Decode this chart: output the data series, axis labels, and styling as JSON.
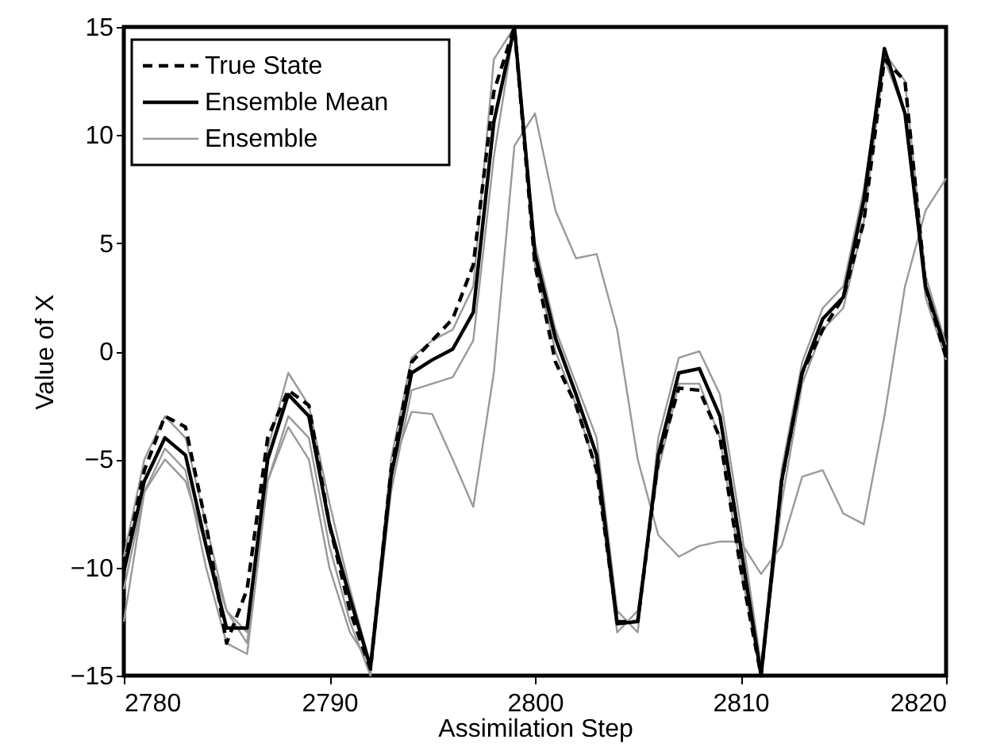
{
  "chart_data": {
    "type": "line",
    "xlabel": "Assimilation Step",
    "ylabel": "Value of X",
    "x": [
      2780,
      2781,
      2782,
      2783,
      2784,
      2785,
      2786,
      2787,
      2788,
      2789,
      2790,
      2791,
      2792,
      2793,
      2794,
      2795,
      2796,
      2797,
      2798,
      2799,
      2800,
      2801,
      2802,
      2803,
      2804,
      2805,
      2806,
      2807,
      2808,
      2809,
      2810,
      2811,
      2812,
      2813,
      2814,
      2815,
      2816,
      2817,
      2818,
      2819,
      2820
    ],
    "xlim": [
      2780,
      2820
    ],
    "xticks": [
      2780,
      2790,
      2800,
      2810,
      2820
    ],
    "ylim": [
      -15,
      15
    ],
    "yticks": [
      -15,
      -10,
      -5,
      0,
      5,
      10,
      15
    ],
    "grid": false,
    "legend": "top left",
    "marker": "none",
    "series": [
      {
        "name": "True State",
        "color": "#000000",
        "line_style": "dashed",
        "values": [
          -10,
          -5.5,
          -3,
          -3.5,
          -8,
          -13.5,
          -11,
          -4,
          -1.8,
          -2.5,
          -8,
          -12,
          -14.7,
          -5.5,
          -0.5,
          0.5,
          1.5,
          4,
          12,
          15,
          4,
          -0.5,
          -2.5,
          -5.5,
          -12.5,
          -12.5,
          -5,
          -1.7,
          -1.8,
          -4,
          -10,
          -15,
          -6,
          -1,
          1,
          2.5,
          6,
          13.5,
          12.5,
          3,
          -0.3
        ]
      },
      {
        "name": "Ensemble Mean",
        "color": "#000000",
        "line_style": "solid",
        "values": [
          -10.2,
          -6,
          -4,
          -4.8,
          -9,
          -12.8,
          -12.8,
          -5,
          -2,
          -3,
          -8,
          -11.4,
          -14.6,
          -5.8,
          -1,
          -0.4,
          0.1,
          1.8,
          10.6,
          15,
          4.5,
          0.6,
          -2,
          -4.8,
          -12.6,
          -12.5,
          -4.8,
          -1,
          -0.8,
          -3,
          -9,
          -15,
          -6,
          -1,
          1.5,
          2.5,
          7,
          14,
          11,
          3,
          0
        ]
      },
      {
        "name": "Ensemble",
        "color": "#999999",
        "line_style": "solid",
        "values": [
          -12.5,
          -6.5,
          -5,
          -6,
          -9,
          -12,
          -13,
          -6,
          -3.5,
          -5,
          -10,
          -13,
          -14.5,
          -5.5,
          -2.8,
          -2.9,
          -5,
          -7.2,
          -1,
          9.5,
          11,
          6.5,
          4.3,
          4.5,
          1,
          -5,
          -8.5,
          -9.5,
          -9,
          -8.8,
          -8.8,
          -10.3,
          -9,
          -5.8,
          -5.5,
          -7.5,
          -8,
          -3,
          3,
          6.5,
          8
        ]
      },
      {
        "color": "#999999",
        "line_style": "solid",
        "values": [
          -9.5,
          -5,
          -3,
          -4,
          -8,
          -12,
          -13.5,
          -4.5,
          -1,
          -2.5,
          -7,
          -11,
          -14.5,
          -5,
          -0.3,
          0.5,
          1,
          3,
          13.5,
          15,
          5,
          1,
          -1.5,
          -4,
          -12,
          -13,
          -4,
          -0.3,
          0,
          -2,
          -8,
          -14.5,
          -5.5,
          -0.5,
          2,
          3,
          7.5,
          13.8,
          12.5,
          3.5,
          0.3
        ]
      },
      {
        "color": "#999999",
        "line_style": "solid",
        "values": [
          -11,
          -6.5,
          -4.5,
          -5.5,
          -10,
          -13.5,
          -14,
          -6,
          -3,
          -4,
          -9,
          -12.5,
          -15,
          -6.5,
          -1.8,
          -1.5,
          -1.2,
          0.5,
          9,
          15,
          4,
          0,
          -2.5,
          -5.5,
          -13,
          -12,
          -5.5,
          -1.5,
          -1.5,
          -4,
          -10,
          -15,
          -7,
          -1.5,
          1,
          2,
          6,
          13.5,
          11,
          2.5,
          -0.4
        ]
      }
    ]
  }
}
